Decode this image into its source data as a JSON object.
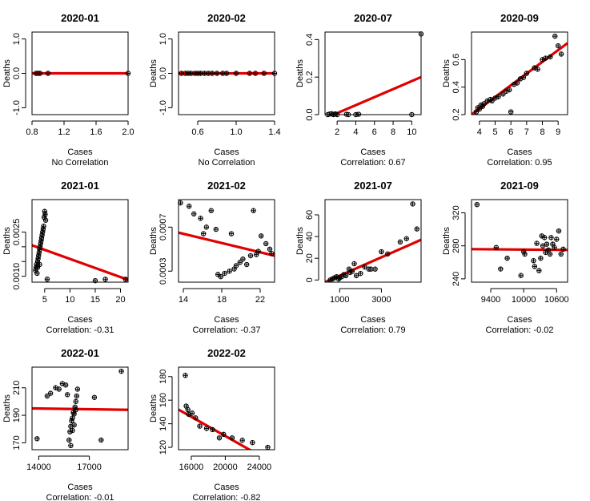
{
  "colors": {
    "regression_line": "#e00000",
    "points": "#000000",
    "background": "#ffffff"
  },
  "chart_data": [
    {
      "type": "scatter",
      "title": "2020-01",
      "xlabel": "Cases",
      "ylabel": "Deaths",
      "caption": "No Correlation",
      "xlim": [
        0.8,
        2.0
      ],
      "ylim": [
        -1.2,
        1.2
      ],
      "xticks": [
        0.8,
        1.2,
        1.6,
        2.0
      ],
      "xtick_labels": [
        "0.8",
        "1.2",
        "1.6",
        "2.0"
      ],
      "yticks": [
        -1.0,
        0.0,
        1.0
      ],
      "ytick_labels": [
        "-1.0",
        "0.0",
        "1.0"
      ],
      "points": [
        [
          0.85,
          0
        ],
        [
          0.87,
          0
        ],
        [
          0.9,
          0
        ],
        [
          1.0,
          0
        ],
        [
          2.0,
          0
        ]
      ],
      "fit": [
        0.8,
        0,
        2.0,
        0
      ]
    },
    {
      "type": "scatter",
      "title": "2020-02",
      "xlabel": "Cases",
      "ylabel": "Deaths",
      "caption": "No Correlation",
      "xlim": [
        0.4,
        1.4
      ],
      "ylim": [
        -1.2,
        1.2
      ],
      "xticks": [
        0.6,
        1.0,
        1.4
      ],
      "xtick_labels": [
        "0.6",
        "1.0",
        "1.4"
      ],
      "yticks": [
        -1.0,
        0.0,
        1.0
      ],
      "ytick_labels": [
        "-1.0",
        "0.0",
        "1.0"
      ],
      "points": [
        [
          0.43,
          0
        ],
        [
          0.47,
          0
        ],
        [
          0.5,
          0
        ],
        [
          0.53,
          0
        ],
        [
          0.57,
          0
        ],
        [
          0.6,
          0
        ],
        [
          0.63,
          0
        ],
        [
          0.67,
          0
        ],
        [
          0.71,
          0
        ],
        [
          0.75,
          0
        ],
        [
          0.8,
          0
        ],
        [
          0.86,
          0
        ],
        [
          0.9,
          0
        ],
        [
          1.0,
          0
        ],
        [
          1.14,
          0
        ],
        [
          1.2,
          0
        ],
        [
          1.29,
          0
        ],
        [
          1.4,
          0
        ]
      ],
      "fit": [
        0.4,
        0,
        1.4,
        0
      ]
    },
    {
      "type": "scatter",
      "title": "2020-07",
      "xlabel": "Cases",
      "ylabel": "Deaths",
      "caption": "Correlation:  0.67",
      "xlim": [
        0.7,
        11
      ],
      "ylim": [
        0,
        0.44
      ],
      "xticks": [
        2,
        4,
        6,
        8,
        10
      ],
      "xtick_labels": [
        "2",
        "4",
        "6",
        "8",
        "10"
      ],
      "yticks": [
        0.0,
        0.2,
        0.4
      ],
      "ytick_labels": [
        "0.0",
        "0.2",
        "0.4"
      ],
      "points": [
        [
          1,
          0
        ],
        [
          1.2,
          0.003
        ],
        [
          1.4,
          0.005
        ],
        [
          1.6,
          0
        ],
        [
          1.8,
          0.004
        ],
        [
          2,
          0
        ],
        [
          3,
          0.002
        ],
        [
          3.2,
          0
        ],
        [
          4,
          0
        ],
        [
          4.3,
          0.002
        ],
        [
          10,
          0
        ],
        [
          11,
          0.43
        ]
      ],
      "fit": [
        0.7,
        -0.02,
        11,
        0.2
      ]
    },
    {
      "type": "scatter",
      "title": "2020-09",
      "xlabel": "Cases",
      "ylabel": "Deaths",
      "caption": "Correlation:  0.95",
      "xlim": [
        3.5,
        9.6
      ],
      "ylim": [
        0.2,
        0.8
      ],
      "xticks": [
        4,
        5,
        6,
        7,
        8,
        9
      ],
      "xtick_labels": [
        "4",
        "5",
        "6",
        "7",
        "8",
        "9"
      ],
      "yticks": [
        0.2,
        0.4,
        0.6
      ],
      "ytick_labels": [
        "0.2",
        "0.4",
        "0.6"
      ],
      "points": [
        [
          3.8,
          0.22
        ],
        [
          3.9,
          0.25
        ],
        [
          4.0,
          0.24
        ],
        [
          4.1,
          0.27
        ],
        [
          4.2,
          0.26
        ],
        [
          4.3,
          0.28
        ],
        [
          4.5,
          0.3
        ],
        [
          4.7,
          0.31
        ],
        [
          4.8,
          0.3
        ],
        [
          5.0,
          0.32
        ],
        [
          5.2,
          0.33
        ],
        [
          5.5,
          0.35
        ],
        [
          5.7,
          0.37
        ],
        [
          5.9,
          0.38
        ],
        [
          6.0,
          0.22
        ],
        [
          6.2,
          0.42
        ],
        [
          6.4,
          0.43
        ],
        [
          6.6,
          0.46
        ],
        [
          6.8,
          0.47
        ],
        [
          7.0,
          0.5
        ],
        [
          7.5,
          0.54
        ],
        [
          7.7,
          0.53
        ],
        [
          8.0,
          0.6
        ],
        [
          8.2,
          0.61
        ],
        [
          8.5,
          0.62
        ],
        [
          8.8,
          0.77
        ],
        [
          9.0,
          0.7
        ],
        [
          9.2,
          0.64
        ]
      ],
      "fit": [
        3.5,
        0.2,
        9.6,
        0.72
      ]
    },
    {
      "type": "scatter",
      "title": "2021-01",
      "xlabel": "Cases",
      "ylabel": "Deaths",
      "caption": "Correlation:  -0.31",
      "xlim": [
        2.5,
        21.5
      ],
      "ylim": [
        0.0008,
        0.0036
      ],
      "xticks": [
        5,
        10,
        15,
        20
      ],
      "xtick_labels": [
        "5",
        "10",
        "15",
        "20"
      ],
      "yticks": [
        0.001,
        0.0015,
        0.002,
        0.0025
      ],
      "ytick_labels": [
        "0.0010",
        "",
        "",
        "0.0025"
      ],
      "points": [
        [
          3.2,
          0.0012
        ],
        [
          3.3,
          0.0013
        ],
        [
          3.4,
          0.0014
        ],
        [
          3.5,
          0.0011
        ],
        [
          3.6,
          0.0015
        ],
        [
          3.7,
          0.0016
        ],
        [
          3.8,
          0.0017
        ],
        [
          3.9,
          0.0018
        ],
        [
          4.0,
          0.0019
        ],
        [
          4.1,
          0.002
        ],
        [
          4.2,
          0.0021
        ],
        [
          4.3,
          0.0022
        ],
        [
          4.4,
          0.0023
        ],
        [
          4.5,
          0.0024
        ],
        [
          4.6,
          0.0025
        ],
        [
          4.7,
          0.0026
        ],
        [
          4.8,
          0.0027
        ],
        [
          4.9,
          0.003
        ],
        [
          5.0,
          0.0032
        ],
        [
          5.1,
          0.0031
        ],
        [
          5.2,
          0.0029
        ],
        [
          3.6,
          0.0013
        ],
        [
          4.0,
          0.0014
        ],
        [
          5.5,
          0.0009
        ],
        [
          15,
          0.00085
        ],
        [
          17,
          0.0009
        ],
        [
          21,
          0.0009
        ]
      ],
      "fit": [
        2.5,
        0.00205,
        21.5,
        0.00088
      ]
    },
    {
      "type": "scatter",
      "title": "2021-02",
      "xlabel": "Cases",
      "ylabel": "Deaths",
      "caption": "Correlation:  -0.37",
      "xlim": [
        13.5,
        23.5
      ],
      "ylim": [
        0.0002,
        0.00095
      ],
      "xticks": [
        14,
        18,
        22
      ],
      "xtick_labels": [
        "14",
        "18",
        "22"
      ],
      "yticks": [
        0.0003,
        0.0007
      ],
      "ytick_labels": [
        "0.0003",
        "0.0007"
      ],
      "points": [
        [
          13.7,
          0.00092
        ],
        [
          14.6,
          0.00089
        ],
        [
          15.1,
          0.00082
        ],
        [
          15.8,
          0.00078
        ],
        [
          16.1,
          0.00064
        ],
        [
          16.4,
          0.0007
        ],
        [
          16.9,
          0.00085
        ],
        [
          17.4,
          0.00068
        ],
        [
          17.6,
          0.00027
        ],
        [
          17.9,
          0.00025
        ],
        [
          18.3,
          0.00028
        ],
        [
          18.8,
          0.0003
        ],
        [
          19.0,
          0.00064
        ],
        [
          19.3,
          0.00032
        ],
        [
          19.5,
          0.00035
        ],
        [
          19.9,
          0.00038
        ],
        [
          20.2,
          0.00041
        ],
        [
          20.6,
          0.00036
        ],
        [
          21.0,
          0.00044
        ],
        [
          21.3,
          0.00085
        ],
        [
          21.6,
          0.00045
        ],
        [
          21.8,
          0.00048
        ],
        [
          22.1,
          0.00062
        ],
        [
          22.6,
          0.00055
        ],
        [
          23.0,
          0.0005
        ],
        [
          23.2,
          0.00046
        ]
      ],
      "fit": [
        13.5,
        0.00065,
        23.5,
        0.00044
      ]
    },
    {
      "type": "scatter",
      "title": "2021-07",
      "xlabel": "Cases",
      "ylabel": "Deaths",
      "caption": "Correlation:  0.79",
      "xlim": [
        300,
        4900
      ],
      "ylim": [
        -2,
        74
      ],
      "xticks": [
        1000,
        3000
      ],
      "xtick_labels": [
        "1000",
        "3000"
      ],
      "yticks": [
        0,
        20,
        40,
        60
      ],
      "ytick_labels": [
        "0",
        "20",
        "40",
        "60"
      ],
      "points": [
        [
          550,
          0
        ],
        [
          650,
          1
        ],
        [
          750,
          2
        ],
        [
          850,
          3
        ],
        [
          950,
          1
        ],
        [
          1000,
          2
        ],
        [
          1100,
          3
        ],
        [
          1200,
          5
        ],
        [
          1300,
          4
        ],
        [
          1450,
          10
        ],
        [
          1500,
          7
        ],
        [
          1600,
          8
        ],
        [
          1700,
          15
        ],
        [
          1800,
          4
        ],
        [
          2000,
          6
        ],
        [
          2200,
          12
        ],
        [
          2400,
          10
        ],
        [
          2500,
          10
        ],
        [
          2700,
          10
        ],
        [
          3000,
          26
        ],
        [
          3300,
          24
        ],
        [
          3900,
          35
        ],
        [
          4200,
          38
        ],
        [
          4500,
          70
        ],
        [
          4700,
          47
        ]
      ],
      "fit": [
        300,
        -2,
        4900,
        37
      ]
    },
    {
      "type": "scatter",
      "title": "2021-09",
      "xlabel": "Cases",
      "ylabel": "Deaths",
      "caption": "Correlation:  -0.02",
      "xlim": [
        9050,
        10800
      ],
      "ylim": [
        236,
        336
      ],
      "xticks": [
        9400,
        10000,
        10600
      ],
      "xtick_labels": [
        "9400",
        "10000",
        "10600"
      ],
      "yticks": [
        240,
        280,
        320
      ],
      "ytick_labels": [
        "240",
        "280",
        "320"
      ],
      "points": [
        [
          9150,
          330
        ],
        [
          9500,
          278
        ],
        [
          9580,
          252
        ],
        [
          9700,
          265
        ],
        [
          9950,
          244
        ],
        [
          10000,
          273
        ],
        [
          10020,
          270
        ],
        [
          10180,
          262
        ],
        [
          10200,
          255
        ],
        [
          10240,
          283
        ],
        [
          10280,
          250
        ],
        [
          10310,
          265
        ],
        [
          10330,
          292
        ],
        [
          10350,
          280
        ],
        [
          10380,
          290
        ],
        [
          10400,
          272
        ],
        [
          10420,
          282
        ],
        [
          10450,
          275
        ],
        [
          10480,
          270
        ],
        [
          10500,
          290
        ],
        [
          10530,
          282
        ],
        [
          10560,
          278
        ],
        [
          10600,
          288
        ],
        [
          10640,
          298
        ],
        [
          10680,
          270
        ],
        [
          10720,
          276
        ]
      ],
      "fit": [
        9050,
        276,
        10800,
        275
      ]
    },
    {
      "type": "scatter",
      "title": "2022-01",
      "xlabel": "Cases",
      "ylabel": "Deaths",
      "caption": "Correlation:  -0.01",
      "xlim": [
        13600,
        19300
      ],
      "ylim": [
        165,
        225
      ],
      "xticks": [
        14000,
        17000
      ],
      "xtick_labels": [
        "14000",
        "17000"
      ],
      "yticks": [
        170,
        190,
        210
      ],
      "ytick_labels": [
        "170",
        "190",
        "210"
      ],
      "points": [
        [
          13900,
          173
        ],
        [
          14500,
          204
        ],
        [
          14700,
          206
        ],
        [
          15000,
          210
        ],
        [
          15200,
          209
        ],
        [
          15400,
          213
        ],
        [
          15600,
          212
        ],
        [
          15700,
          205
        ],
        [
          15800,
          172
        ],
        [
          15850,
          178
        ],
        [
          15900,
          182
        ],
        [
          15950,
          186
        ],
        [
          16000,
          188
        ],
        [
          16050,
          192
        ],
        [
          16100,
          191
        ],
        [
          16150,
          196
        ],
        [
          16200,
          200
        ],
        [
          16250,
          204
        ],
        [
          16300,
          209
        ],
        [
          16100,
          183
        ],
        [
          16000,
          179
        ],
        [
          16200,
          194
        ],
        [
          15900,
          168
        ],
        [
          17300,
          203
        ],
        [
          17700,
          172
        ],
        [
          18900,
          222
        ]
      ],
      "fit": [
        13600,
        195,
        19300,
        194
      ]
    },
    {
      "type": "scatter",
      "title": "2022-02",
      "xlabel": "Cases",
      "ylabel": "Deaths",
      "caption": "Correlation:  -0.82",
      "xlim": [
        14500,
        25800
      ],
      "ylim": [
        118,
        188
      ],
      "xticks": [
        16000,
        20000,
        24000
      ],
      "xtick_labels": [
        "16000",
        "20000",
        "24000"
      ],
      "yticks": [
        120,
        140,
        160,
        180
      ],
      "ytick_labels": [
        "120",
        "140",
        "160",
        "180"
      ],
      "points": [
        [
          15300,
          181
        ],
        [
          15400,
          155
        ],
        [
          15600,
          152
        ],
        [
          15700,
          148
        ],
        [
          16100,
          149
        ],
        [
          16500,
          145
        ],
        [
          17000,
          138
        ],
        [
          17800,
          136
        ],
        [
          18500,
          135
        ],
        [
          19300,
          128
        ],
        [
          19800,
          131
        ],
        [
          20800,
          128
        ],
        [
          22000,
          126
        ],
        [
          23200,
          124
        ],
        [
          25000,
          120
        ]
      ],
      "fit": [
        14500,
        152,
        25800,
        106
      ]
    }
  ]
}
